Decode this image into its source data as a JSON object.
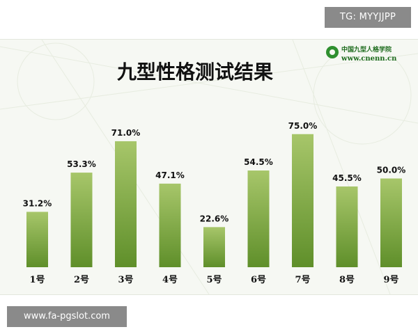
{
  "watermark_top": "TG: MYYJJPP",
  "watermark_bottom": "www.fa-pgslot.com",
  "logo": {
    "name_cn": "中国九型人格学院",
    "url": "www.cnenn.cn",
    "color": "#1d6b1d"
  },
  "colors": {
    "bar_top": "#a7c66a",
    "bar_bottom": "#5f8f2a",
    "panel_bg": "#f6f8f3"
  },
  "chart_data": {
    "type": "bar",
    "title": "九型性格测试结果",
    "xlabel": "",
    "ylabel": "",
    "categories": [
      "1号",
      "2号",
      "3号",
      "4号",
      "5号",
      "6号",
      "7号",
      "8号",
      "9号"
    ],
    "values": [
      31.2,
      53.3,
      71.0,
      47.1,
      22.6,
      54.5,
      75.0,
      45.5,
      50.0
    ],
    "value_labels": [
      "31.2%",
      "53.3%",
      "71.0%",
      "47.1%",
      "22.6%",
      "54.5%",
      "75.0%",
      "45.5%",
      "50.0%"
    ],
    "ylim": [
      0,
      100
    ],
    "grid": false,
    "legend": "none"
  }
}
